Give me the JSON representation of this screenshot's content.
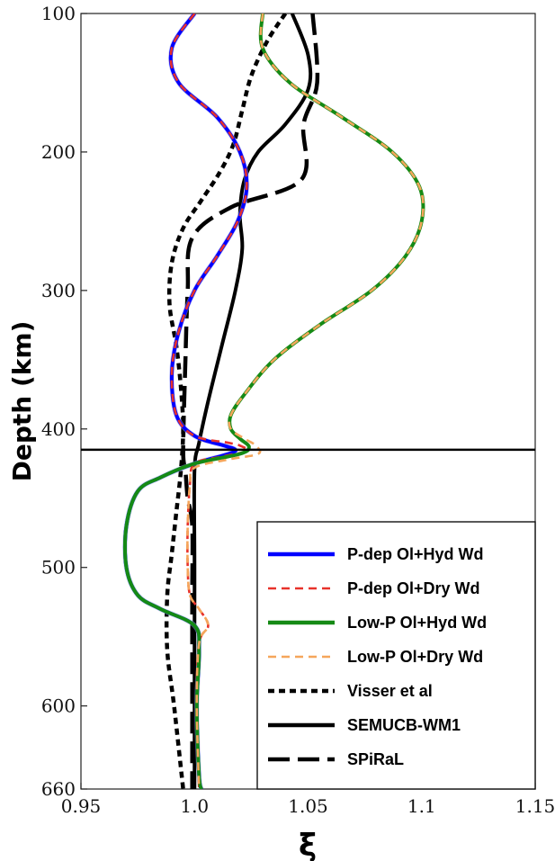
{
  "chart_data": {
    "type": "line",
    "title": "",
    "xlabel": "ξ",
    "ylabel": "Depth (km)",
    "xlim": [
      0.95,
      1.15
    ],
    "ylim": [
      100,
      660
    ],
    "y_inverted": true,
    "x_ticks": [
      0.95,
      1.0,
      1.05,
      1.1,
      1.15
    ],
    "x_tick_labels": [
      "0.95",
      "1.0",
      "1.05",
      "1.1",
      "1.15"
    ],
    "y_ticks": [
      100,
      200,
      300,
      400,
      500,
      600,
      660
    ],
    "y_tick_labels": [
      "100",
      "200",
      "300",
      "400",
      "500",
      "600",
      "660"
    ],
    "reference_line_depth": 415,
    "grid": false,
    "legend_position": "bottom-right",
    "series": [
      {
        "name": "P-dep Ol+Hyd Wd",
        "color": "#0000ff",
        "dash": "solid",
        "points": [
          [
            1.0,
            100
          ],
          [
            0.99,
            125
          ],
          [
            0.993,
            150
          ],
          [
            1.01,
            175
          ],
          [
            1.02,
            200
          ],
          [
            1.023,
            225
          ],
          [
            1.019,
            250
          ],
          [
            1.01,
            275
          ],
          [
            1.0,
            300
          ],
          [
            0.993,
            330
          ],
          [
            0.99,
            360
          ],
          [
            0.992,
            390
          ],
          [
            1.0,
            405
          ],
          [
            1.013,
            412
          ],
          [
            1.018,
            415
          ],
          [
            1.015,
            418
          ],
          [
            1.0,
            425
          ],
          [
            0.985,
            435
          ],
          [
            0.975,
            445
          ],
          [
            0.97,
            470
          ],
          [
            0.97,
            500
          ],
          [
            0.975,
            520
          ],
          [
            0.985,
            530
          ],
          [
            1.0,
            542
          ],
          [
            1.002,
            560
          ],
          [
            1.001,
            600
          ],
          [
            1.002,
            650
          ],
          [
            1.003,
            660
          ]
        ]
      },
      {
        "name": "P-dep Ol+Dry Wd",
        "color": "#e8322b",
        "dash": "dashed",
        "points": [
          [
            1.0,
            100
          ],
          [
            0.99,
            125
          ],
          [
            0.993,
            150
          ],
          [
            1.01,
            175
          ],
          [
            1.02,
            200
          ],
          [
            1.023,
            225
          ],
          [
            1.019,
            250
          ],
          [
            1.01,
            275
          ],
          [
            1.0,
            300
          ],
          [
            0.993,
            330
          ],
          [
            0.99,
            360
          ],
          [
            0.992,
            390
          ],
          [
            1.0,
            405
          ],
          [
            1.015,
            410
          ],
          [
            1.02,
            412
          ],
          [
            1.023,
            416
          ],
          [
            1.012,
            420
          ],
          [
            1.0,
            425
          ],
          [
            0.998,
            440
          ],
          [
            0.997,
            470
          ],
          [
            0.997,
            500
          ],
          [
            0.998,
            520
          ],
          [
            1.002,
            530
          ],
          [
            1.006,
            542
          ],
          [
            1.002,
            555
          ],
          [
            1.001,
            600
          ],
          [
            1.002,
            660
          ]
        ]
      },
      {
        "name": "Low-P Ol+Hyd Wd",
        "color": "#158a15",
        "dash": "solid",
        "points": [
          [
            1.03,
            100
          ],
          [
            1.03,
            125
          ],
          [
            1.042,
            150
          ],
          [
            1.065,
            175
          ],
          [
            1.087,
            200
          ],
          [
            1.099,
            225
          ],
          [
            1.1,
            250
          ],
          [
            1.093,
            275
          ],
          [
            1.078,
            300
          ],
          [
            1.055,
            325
          ],
          [
            1.035,
            350
          ],
          [
            1.022,
            375
          ],
          [
            1.016,
            390
          ],
          [
            1.016,
            400
          ],
          [
            1.02,
            407
          ],
          [
            1.024,
            413
          ],
          [
            1.02,
            418
          ],
          [
            1.0,
            425
          ],
          [
            0.985,
            435
          ],
          [
            0.975,
            445
          ],
          [
            0.97,
            470
          ],
          [
            0.97,
            500
          ],
          [
            0.975,
            520
          ],
          [
            0.985,
            530
          ],
          [
            1.0,
            542
          ],
          [
            1.002,
            560
          ],
          [
            1.001,
            600
          ],
          [
            1.002,
            650
          ],
          [
            1.003,
            660
          ]
        ]
      },
      {
        "name": "Low-P Ol+Dry Wd",
        "color": "#f5a65b",
        "dash": "dashed",
        "points": [
          [
            1.03,
            100
          ],
          [
            1.03,
            125
          ],
          [
            1.042,
            150
          ],
          [
            1.065,
            175
          ],
          [
            1.087,
            200
          ],
          [
            1.099,
            225
          ],
          [
            1.1,
            250
          ],
          [
            1.093,
            275
          ],
          [
            1.078,
            300
          ],
          [
            1.055,
            325
          ],
          [
            1.035,
            350
          ],
          [
            1.022,
            375
          ],
          [
            1.016,
            390
          ],
          [
            1.016,
            400
          ],
          [
            1.022,
            407
          ],
          [
            1.027,
            412
          ],
          [
            1.028,
            418
          ],
          [
            1.015,
            422
          ],
          [
            1.0,
            428
          ],
          [
            0.998,
            440
          ],
          [
            0.997,
            470
          ],
          [
            0.997,
            500
          ],
          [
            0.998,
            520
          ],
          [
            1.002,
            530
          ],
          [
            1.006,
            542
          ],
          [
            1.002,
            555
          ],
          [
            1.001,
            600
          ],
          [
            1.002,
            660
          ]
        ]
      },
      {
        "name": "Visser et al",
        "color": "#000000",
        "dash": "dotted",
        "points": [
          [
            1.04,
            100
          ],
          [
            1.032,
            120
          ],
          [
            1.025,
            145
          ],
          [
            1.021,
            170
          ],
          [
            1.017,
            195
          ],
          [
            1.011,
            215
          ],
          [
            1.003,
            235
          ],
          [
            0.995,
            255
          ],
          [
            0.99,
            280
          ],
          [
            0.989,
            310
          ],
          [
            0.992,
            340
          ],
          [
            0.994,
            370
          ],
          [
            0.995,
            400
          ],
          [
            0.994,
            430
          ],
          [
            0.992,
            460
          ],
          [
            0.99,
            490
          ],
          [
            0.988,
            520
          ],
          [
            0.988,
            560
          ],
          [
            0.991,
            600
          ],
          [
            0.995,
            660
          ]
        ]
      },
      {
        "name": "SEMUCB-WM1",
        "color": "#000000",
        "dash": "solid",
        "points": [
          [
            1.043,
            100
          ],
          [
            1.05,
            130
          ],
          [
            1.05,
            155
          ],
          [
            1.04,
            180
          ],
          [
            1.028,
            200
          ],
          [
            1.022,
            220
          ],
          [
            1.02,
            245
          ],
          [
            1.021,
            270
          ],
          [
            1.018,
            300
          ],
          [
            1.012,
            340
          ],
          [
            1.006,
            380
          ],
          [
            1.002,
            410
          ],
          [
            1.0,
            430
          ],
          [
            1.0,
            500
          ],
          [
            1.0,
            600
          ],
          [
            1.0,
            660
          ]
        ]
      },
      {
        "name": "SPiRaL",
        "color": "#000000",
        "dash": "longdash",
        "points": [
          [
            1.052,
            100
          ],
          [
            1.054,
            150
          ],
          [
            1.048,
            180
          ],
          [
            1.047,
            220
          ],
          [
            1.016,
            240
          ],
          [
            0.999,
            262
          ],
          [
            0.997,
            300
          ],
          [
            0.996,
            350
          ],
          [
            0.995,
            415
          ],
          [
            0.996,
            430
          ],
          [
            0.997,
            450
          ],
          [
            0.999,
            470
          ],
          [
            0.999,
            520
          ],
          [
            0.999,
            600
          ],
          [
            0.999,
            660
          ]
        ]
      }
    ]
  }
}
